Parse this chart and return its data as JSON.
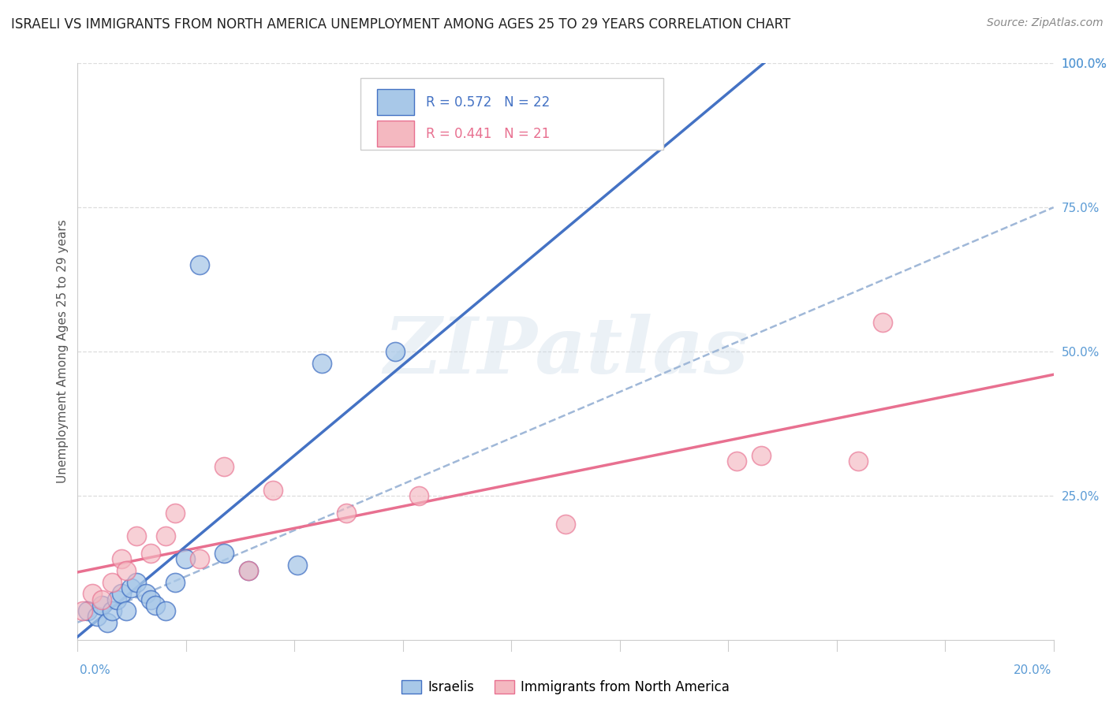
{
  "title": "ISRAELI VS IMMIGRANTS FROM NORTH AMERICA UNEMPLOYMENT AMONG AGES 25 TO 29 YEARS CORRELATION CHART",
  "source": "Source: ZipAtlas.com",
  "ylabel": "Unemployment Among Ages 25 to 29 years",
  "legend_label1": "Israelis",
  "legend_label2": "Immigrants from North America",
  "R1": 0.572,
  "N1": 22,
  "R2": 0.441,
  "N2": 21,
  "color1": "#a8c8e8",
  "color1_line": "#4472c4",
  "color2": "#f4b8c0",
  "color2_line": "#e87090",
  "color_dash": "#a0b8d8",
  "bg_color": "#ffffff",
  "watermark": "ZIPatlas",
  "israelis_x": [
    0.2,
    0.4,
    0.5,
    0.6,
    0.7,
    0.8,
    0.9,
    1.0,
    1.1,
    1.2,
    1.4,
    1.5,
    1.6,
    1.8,
    2.0,
    2.2,
    2.5,
    3.0,
    3.5,
    4.5,
    5.0,
    6.5
  ],
  "israelis_y": [
    5,
    4,
    6,
    3,
    5,
    7,
    8,
    5,
    9,
    10,
    8,
    7,
    6,
    5,
    10,
    14,
    65,
    15,
    12,
    13,
    48,
    50
  ],
  "immigrants_x": [
    0.1,
    0.3,
    0.5,
    0.7,
    0.9,
    1.0,
    1.2,
    1.5,
    1.8,
    2.0,
    2.5,
    3.0,
    3.5,
    4.0,
    5.5,
    7.0,
    10.0,
    13.5,
    14.0,
    16.0,
    16.5
  ],
  "immigrants_y": [
    5,
    8,
    7,
    10,
    14,
    12,
    18,
    15,
    18,
    22,
    14,
    30,
    12,
    26,
    22,
    25,
    20,
    31,
    32,
    31,
    55
  ],
  "xlim": [
    0,
    20
  ],
  "ylim": [
    0,
    100
  ],
  "yticks": [
    25,
    50,
    75,
    100
  ],
  "ytick_labels": [
    "25.0%",
    "50.0%",
    "75.0%",
    "100.0%"
  ],
  "xtick_left": "0.0%",
  "xtick_right": "20.0%",
  "grid_color": "#dddddd",
  "spine_color": "#cccccc",
  "tick_color": "#5b9bd5",
  "title_fontsize": 12,
  "source_fontsize": 10,
  "ylabel_fontsize": 11,
  "rtick_fontsize": 11,
  "legend_box_color": "#f0f0f0",
  "legend_box_edge": "#cccccc"
}
